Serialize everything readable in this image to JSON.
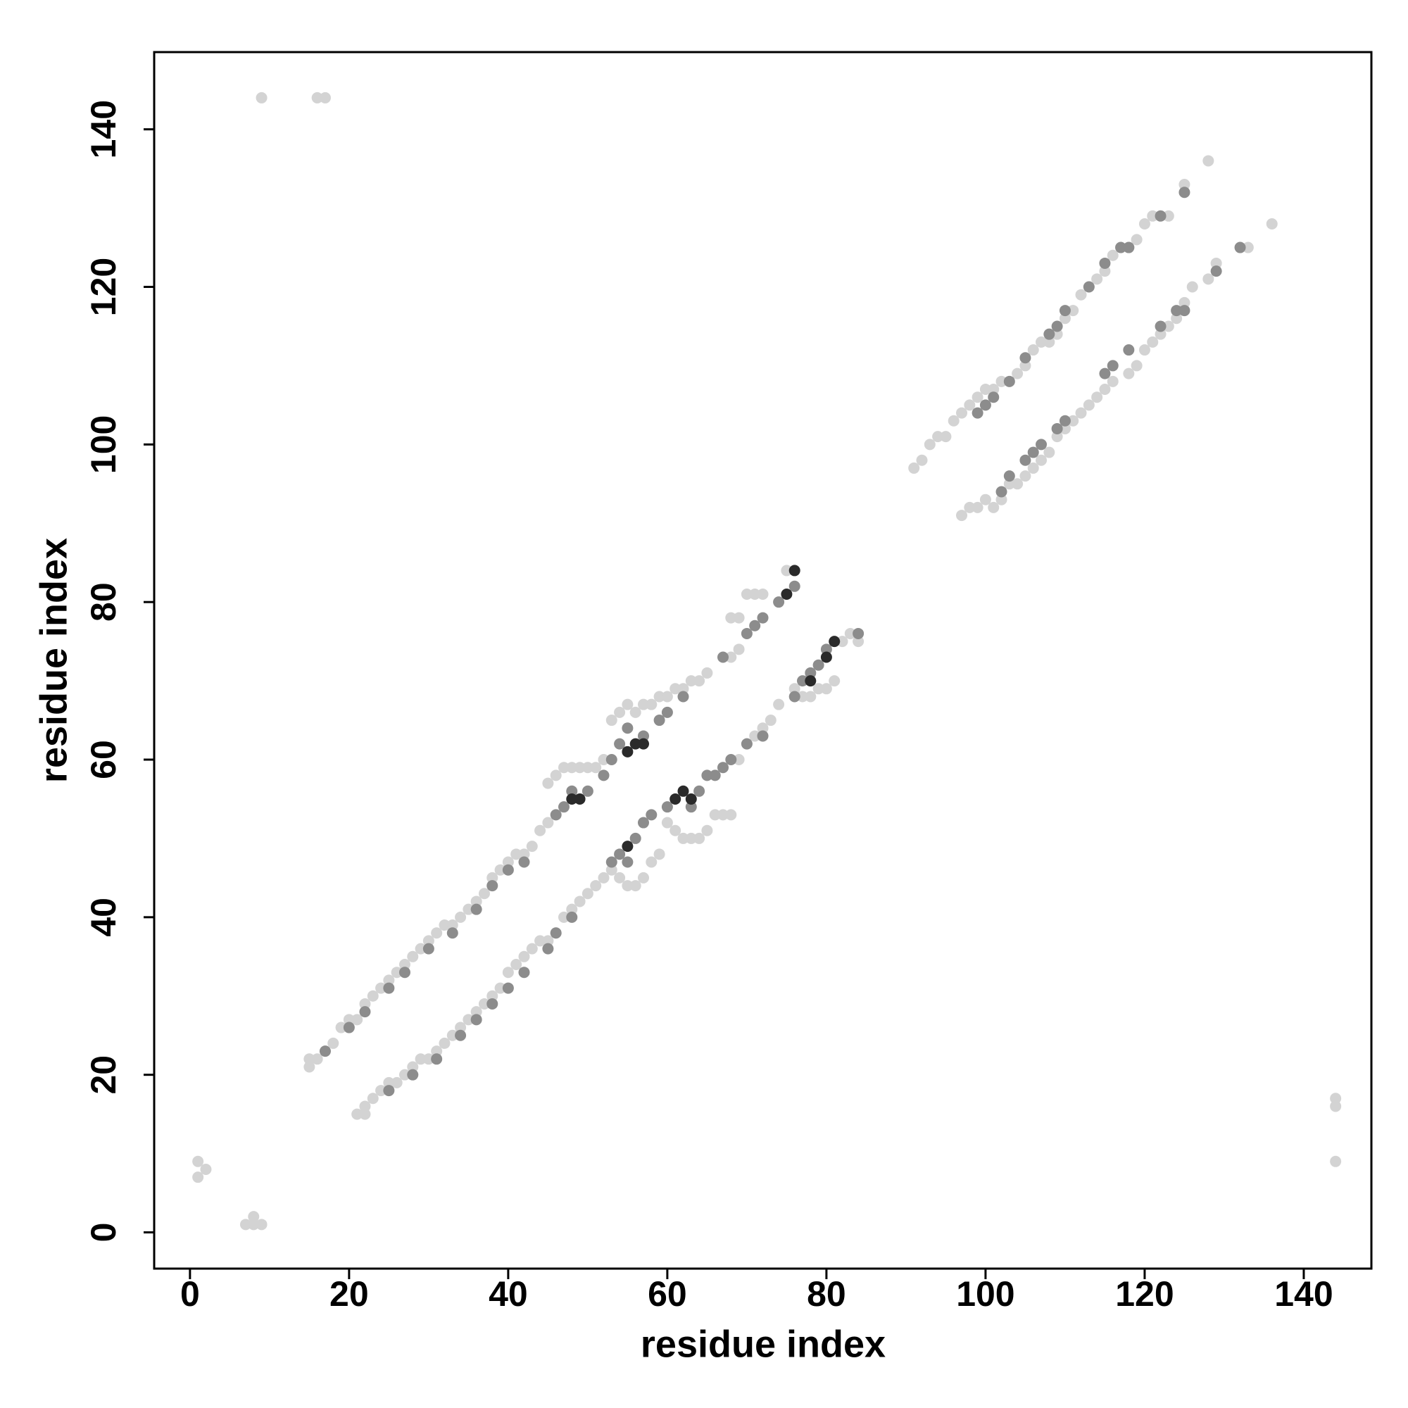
{
  "chart_data": {
    "type": "scatter",
    "xlabel": "residue index",
    "ylabel": "residue index",
    "xlim": [
      -4.5,
      148.5
    ],
    "ylim": [
      -4.6,
      149.8
    ],
    "xticks": [
      0,
      20,
      40,
      60,
      80,
      100,
      120,
      140
    ],
    "yticks": [
      0,
      20,
      40,
      60,
      80,
      100,
      120,
      140
    ],
    "series": [
      {
        "color": "#d3d3d3",
        "x": [
          15,
          15,
          16,
          17,
          18,
          19,
          20,
          21,
          22,
          23,
          24,
          25,
          26,
          27,
          28,
          29,
          30,
          31,
          32,
          33,
          34,
          35,
          36,
          37,
          38,
          39,
          40,
          41,
          42,
          43,
          44,
          45,
          45,
          46,
          47,
          48,
          49,
          50,
          51,
          52,
          53,
          54,
          55,
          56,
          57,
          58,
          59,
          60,
          61,
          62,
          63,
          64,
          65,
          68,
          69,
          70,
          71,
          72,
          68,
          69,
          75,
          21,
          22,
          22,
          23,
          24,
          25,
          26,
          27,
          28,
          29,
          30,
          31,
          32,
          33,
          34,
          35,
          36,
          37,
          38,
          39,
          40,
          41,
          42,
          43,
          44,
          45,
          46,
          47,
          48,
          49,
          50,
          51,
          52,
          53,
          54,
          55,
          56,
          57,
          58,
          59,
          60,
          61,
          62,
          63,
          64,
          65,
          66,
          67,
          68,
          69,
          70,
          71,
          72,
          73,
          74,
          76,
          77,
          78,
          79,
          80,
          81,
          82,
          83,
          84,
          91,
          92,
          93,
          94,
          95,
          96,
          97,
          98,
          99,
          100,
          101,
          102,
          104,
          105,
          106,
          107,
          108,
          109,
          110,
          111,
          112,
          113,
          114,
          115,
          116,
          118,
          119,
          120,
          121,
          123,
          125,
          128,
          97,
          98,
          99,
          100,
          101,
          102,
          103,
          104,
          105,
          106,
          107,
          108,
          109,
          110,
          111,
          112,
          113,
          114,
          115,
          116,
          118,
          119,
          120,
          121,
          122,
          123,
          124,
          125,
          126,
          128,
          129,
          133,
          136,
          9,
          16,
          17,
          1,
          1,
          2,
          7,
          8,
          9,
          8,
          144,
          144,
          144
        ],
        "y": [
          21,
          22,
          22,
          23,
          24,
          26,
          27,
          27,
          29,
          30,
          31,
          32,
          33,
          34,
          35,
          36,
          37,
          38,
          39,
          39,
          40,
          41,
          42,
          43,
          45,
          46,
          47,
          48,
          48,
          49,
          51,
          52,
          57,
          58,
          59,
          59,
          59,
          59,
          59,
          60,
          65,
          66,
          67,
          66,
          67,
          67,
          68,
          68,
          69,
          69,
          70,
          70,
          71,
          73,
          74,
          81,
          81,
          81,
          78,
          78,
          84,
          15,
          15,
          16,
          17,
          18,
          19,
          19,
          20,
          21,
          22,
          22,
          23,
          24,
          25,
          26,
          27,
          28,
          29,
          30,
          31,
          33,
          34,
          35,
          36,
          37,
          37,
          38,
          40,
          41,
          42,
          43,
          44,
          45,
          46,
          45,
          44,
          44,
          45,
          47,
          48,
          52,
          51,
          50,
          50,
          50,
          51,
          53,
          53,
          53,
          60,
          62,
          63,
          64,
          65,
          67,
          69,
          68,
          68,
          69,
          69,
          70,
          75,
          76,
          75,
          97,
          98,
          100,
          101,
          101,
          103,
          104,
          105,
          106,
          107,
          107,
          108,
          109,
          110,
          112,
          113,
          113,
          114,
          116,
          117,
          119,
          120,
          121,
          122,
          124,
          125,
          126,
          128,
          129,
          129,
          133,
          136,
          91,
          92,
          92,
          93,
          92,
          93,
          95,
          95,
          96,
          97,
          98,
          99,
          101,
          102,
          103,
          104,
          105,
          106,
          107,
          108,
          109,
          110,
          112,
          113,
          114,
          115,
          116,
          118,
          120,
          121,
          123,
          125,
          128,
          144,
          144,
          144,
          9,
          7,
          8,
          1,
          2,
          1,
          1,
          17,
          16,
          9
        ]
      },
      {
        "color": "#8c8c8c",
        "x": [
          17,
          20,
          22,
          25,
          27,
          30,
          33,
          36,
          38,
          40,
          42,
          46,
          47,
          48,
          50,
          52,
          53,
          54,
          55,
          57,
          59,
          60,
          62,
          67,
          70,
          71,
          72,
          74,
          76,
          25,
          28,
          31,
          34,
          36,
          38,
          40,
          42,
          45,
          46,
          48,
          53,
          54,
          55,
          56,
          57,
          58,
          60,
          63,
          64,
          65,
          66,
          67,
          68,
          70,
          72,
          76,
          77,
          78,
          79,
          80,
          84,
          99,
          100,
          101,
          103,
          105,
          108,
          109,
          110,
          113,
          115,
          117,
          118,
          122,
          125,
          102,
          103,
          105,
          106,
          107,
          109,
          110,
          115,
          116,
          118,
          122,
          124,
          125,
          129,
          132
        ],
        "y": [
          23,
          26,
          28,
          31,
          33,
          36,
          38,
          41,
          44,
          46,
          47,
          53,
          54,
          56,
          56,
          58,
          60,
          62,
          64,
          63,
          65,
          66,
          68,
          73,
          76,
          77,
          78,
          80,
          82,
          18,
          20,
          22,
          25,
          27,
          29,
          31,
          33,
          36,
          38,
          40,
          47,
          48,
          47,
          50,
          52,
          53,
          54,
          54,
          56,
          58,
          58,
          59,
          60,
          62,
          63,
          68,
          70,
          71,
          72,
          74,
          76,
          104,
          105,
          106,
          108,
          111,
          114,
          115,
          117,
          120,
          123,
          125,
          125,
          129,
          132,
          94,
          96,
          98,
          99,
          100,
          102,
          103,
          109,
          110,
          112,
          115,
          117,
          117,
          122,
          125
        ]
      },
      {
        "color": "#2a2a2a",
        "x": [
          48,
          49,
          55,
          56,
          57,
          55,
          61,
          62,
          63,
          75,
          81,
          76,
          78,
          80
        ],
        "y": [
          55,
          55,
          61,
          62,
          62,
          49,
          55,
          56,
          55,
          81,
          75,
          84,
          70,
          73
        ]
      }
    ]
  }
}
